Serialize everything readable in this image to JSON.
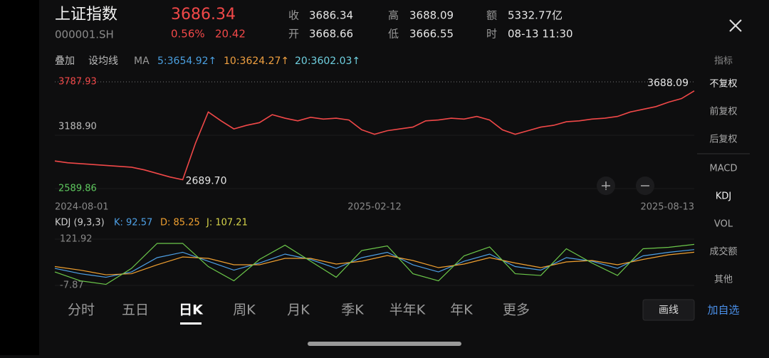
{
  "header": {
    "title": "上证指数",
    "code": "000001.SH",
    "price": "3686.34",
    "change_pct": "0.56%",
    "change": "20.42"
  },
  "info": [
    {
      "label": "收",
      "value": "3686.34"
    },
    {
      "label": "开",
      "value": "3668.66"
    },
    {
      "label": "高",
      "value": "3688.09"
    },
    {
      "label": "低",
      "value": "3666.55"
    },
    {
      "label": "额",
      "value": "5332.77亿"
    },
    {
      "label": "时",
      "value": "08-13 11:30"
    }
  ],
  "toolbar": {
    "overlay": "叠加",
    "set_ma": "设均线",
    "ma": "MA",
    "ma5": "5:3654.92↑",
    "ma10": "10:3624.27↑",
    "ma20": "20:3602.03↑"
  },
  "main_chart": {
    "ylim": [
      2589.86,
      3787.93
    ],
    "yticks": [
      {
        "value": 3787.93,
        "label": "3787.93"
      },
      {
        "value": 3188.9,
        "label": "3188.90"
      },
      {
        "value": 2589.86,
        "label": "2589.86"
      }
    ],
    "xlim": [
      0,
      50
    ],
    "xticks": [
      {
        "value": 0,
        "label": "2024-08-01"
      },
      {
        "value": 25,
        "label": "2025-02-12"
      },
      {
        "value": 50,
        "label": "2025-08-13"
      }
    ],
    "series": [
      {
        "color": "#f04848",
        "values": [
          2900,
          2880,
          2870,
          2860,
          2850,
          2840,
          2830,
          2800,
          2760,
          2720,
          2689.7,
          3100,
          3450,
          3350,
          3260,
          3300,
          3330,
          3420,
          3380,
          3350,
          3390,
          3370,
          3380,
          3360,
          3250,
          3200,
          3240,
          3260,
          3280,
          3350,
          3360,
          3380,
          3370,
          3400,
          3360,
          3250,
          3200,
          3240,
          3280,
          3300,
          3340,
          3350,
          3370,
          3380,
          3400,
          3450,
          3480,
          3510,
          3560,
          3600,
          3686.34
        ]
      }
    ],
    "min_label": "2689.70",
    "max_label": "3688.09"
  },
  "kdj_chart": {
    "title": "KDJ (9,3,3)",
    "k_label": "K: 92.57",
    "d_label": "D: 85.25",
    "j_label": "J: 107.21",
    "ylim": [
      -7.87,
      121.92
    ],
    "yticks": [
      {
        "value": 121.92,
        "label": "121.92"
      },
      {
        "value": -7.87,
        "label": "-7.87"
      }
    ],
    "series": [
      {
        "name": "K",
        "color": "#4ea0e6",
        "values": [
          40,
          25,
          15,
          30,
          70,
          85,
          60,
          35,
          55,
          80,
          65,
          40,
          70,
          85,
          50,
          30,
          60,
          80,
          45,
          35,
          70,
          60,
          40,
          75,
          85,
          92.57
        ]
      },
      {
        "name": "D",
        "color": "#f0a030",
        "values": [
          45,
          35,
          22,
          25,
          50,
          72,
          68,
          50,
          50,
          68,
          68,
          52,
          60,
          76,
          62,
          42,
          52,
          70,
          55,
          42,
          58,
          62,
          50,
          65,
          78,
          85.25
        ]
      },
      {
        "name": "J",
        "color": "#6cc84a",
        "values": [
          30,
          5,
          -5,
          40,
          110,
          110,
          45,
          5,
          65,
          105,
          60,
          15,
          90,
          103,
          25,
          5,
          75,
          100,
          25,
          20,
          95,
          55,
          20,
          95,
          99,
          107.21
        ]
      }
    ]
  },
  "side_menu": [
    "指标",
    "不复权",
    "前复权",
    "后复权",
    "MACD",
    "KDJ",
    "VOL",
    "成交额",
    "其他"
  ],
  "tabs": [
    "分时",
    "五日",
    "日K",
    "周K",
    "月K",
    "季K",
    "半年K",
    "年K",
    "更多"
  ],
  "buttons": {
    "draw": "画线",
    "add": "加自选"
  }
}
